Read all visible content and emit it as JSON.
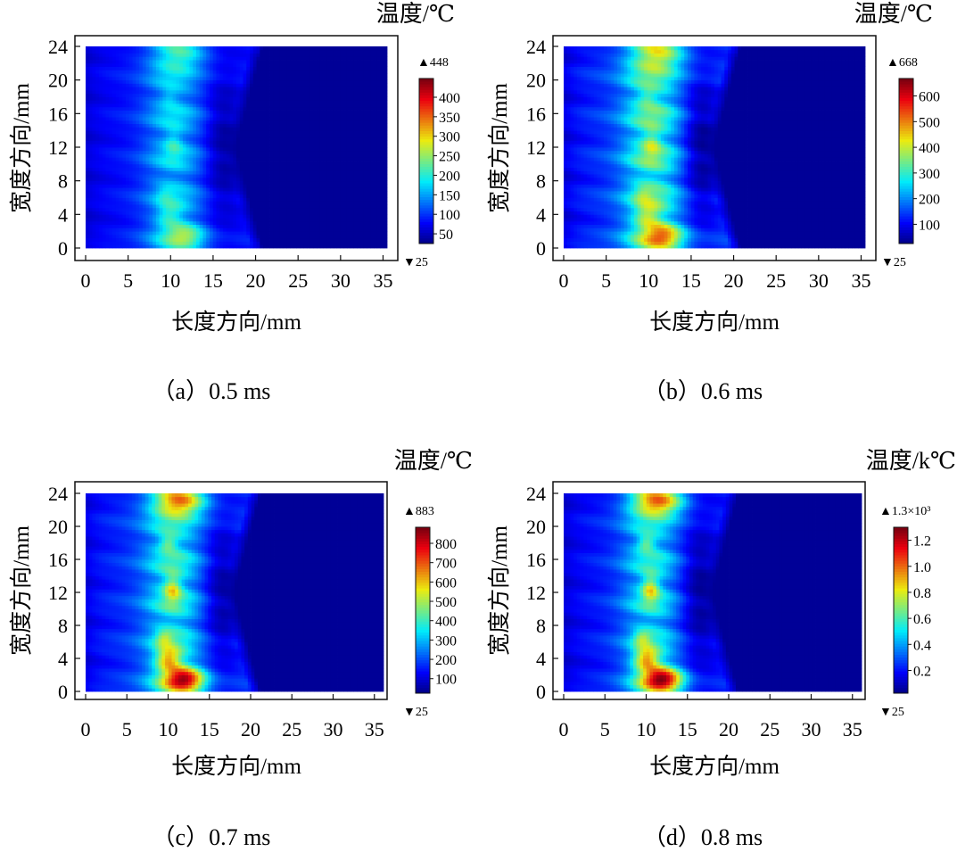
{
  "chart_data": [
    {
      "type": "heatmap",
      "caption": "（a）0.5 ms",
      "title": "温度/℃",
      "xlabel": "长度方向/mm",
      "ylabel": "宽度方向/mm",
      "xlim": [
        0,
        36
      ],
      "ylim": [
        0,
        24
      ],
      "xticks": [
        "0",
        "5",
        "10",
        "15",
        "20",
        "25",
        "30",
        "35"
      ],
      "yticks": [
        "0",
        "4",
        "8",
        "12",
        "16",
        "20",
        "24"
      ],
      "data_xrange": [
        0,
        36
      ],
      "data_yrange": [
        0,
        24
      ],
      "colorbar": {
        "min": 25,
        "max": 448,
        "max_label": "448",
        "min_label": "25",
        "ticks": [
          "50",
          "100",
          "150",
          "200",
          "250",
          "300",
          "350",
          "400"
        ],
        "tick_values": [
          50,
          100,
          150,
          200,
          250,
          300,
          350,
          400
        ]
      },
      "field": {
        "base": 60,
        "band": 170,
        "hot": 260,
        "edge": 400
      }
    },
    {
      "type": "heatmap",
      "caption": "（b）0.6 ms",
      "title": "温度/℃",
      "xlabel": "长度方向/mm",
      "ylabel": "宽度方向/mm",
      "xlim": [
        0,
        36
      ],
      "ylim": [
        0,
        24
      ],
      "xticks": [
        "0",
        "5",
        "10",
        "15",
        "20",
        "25",
        "30",
        "35"
      ],
      "yticks": [
        "0",
        "4",
        "8",
        "12",
        "16",
        "20",
        "24"
      ],
      "data_xrange": [
        0,
        36
      ],
      "data_yrange": [
        0,
        24
      ],
      "colorbar": {
        "min": 25,
        "max": 668,
        "max_label": "668",
        "min_label": "25",
        "ticks": [
          "100",
          "200",
          "300",
          "400",
          "500",
          "600"
        ],
        "tick_values": [
          100,
          200,
          300,
          400,
          500,
          600
        ]
      },
      "field": {
        "base": 85,
        "band": 320,
        "hot": 520,
        "edge": 620
      }
    },
    {
      "type": "heatmap",
      "caption": "（c）0.7 ms",
      "title": "温度/℃",
      "xlabel": "长度方向/mm",
      "ylabel": "宽度方向/mm",
      "xlim": [
        0,
        36
      ],
      "ylim": [
        0,
        24
      ],
      "xticks": [
        "0",
        "5",
        "10",
        "15",
        "20",
        "25",
        "30",
        "35"
      ],
      "yticks": [
        "0",
        "4",
        "8",
        "12",
        "16",
        "20",
        "24"
      ],
      "data_xrange": [
        0,
        36
      ],
      "data_yrange": [
        0,
        24
      ],
      "colorbar": {
        "min": 25,
        "max": 883,
        "max_label": "883",
        "min_label": "25",
        "ticks": [
          "100",
          "200",
          "300",
          "400",
          "500",
          "600",
          "700",
          "800"
        ],
        "tick_values": [
          100,
          200,
          300,
          400,
          500,
          600,
          700,
          800
        ]
      },
      "field": {
        "base": 110,
        "band": 380,
        "hot": 830,
        "edge": 620
      }
    },
    {
      "type": "heatmap",
      "caption": "（d）0.8 ms",
      "title": "温度/k℃",
      "xlabel": "长度方向/mm",
      "ylabel": "宽度方向/mm",
      "xlim": [
        0,
        36
      ],
      "ylim": [
        0,
        24
      ],
      "xticks": [
        "0",
        "5",
        "10",
        "15",
        "20",
        "25",
        "30",
        "35"
      ],
      "yticks": [
        "0",
        "4",
        "8",
        "12",
        "16",
        "20",
        "24"
      ],
      "data_xrange": [
        0,
        36
      ],
      "data_yrange": [
        0,
        24
      ],
      "colorbar": {
        "min": 0.025,
        "max": 1.3,
        "max_label": "1.3×10³",
        "min_label": "25",
        "ticks": [
          "0.2",
          "0.4",
          "0.6",
          "0.8",
          "1.0",
          "1.2"
        ],
        "tick_values": [
          0.2,
          0.4,
          0.6,
          0.8,
          1.0,
          1.2
        ]
      },
      "field": {
        "base": 0.13,
        "band": 0.52,
        "hot": 1.25,
        "edge": 0.75
      }
    }
  ]
}
